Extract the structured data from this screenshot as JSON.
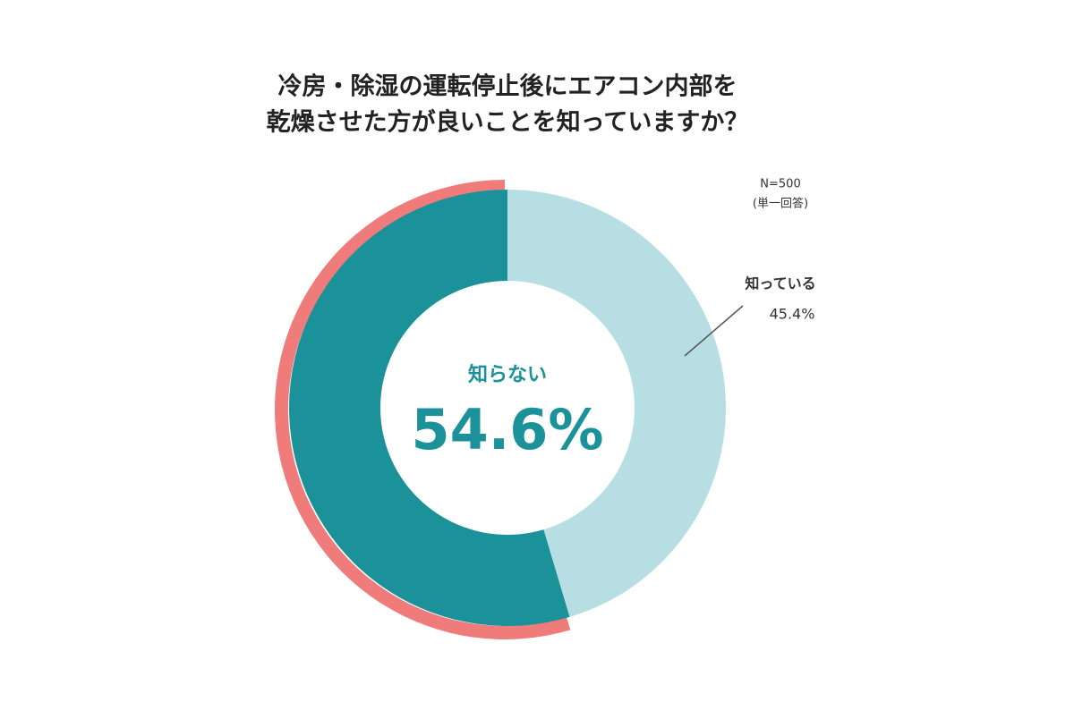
{
  "chart_data": {
    "type": "donut",
    "title": [
      "冷房・除湿の運転停止後にエアコン内部を",
      "乾燥させた方が良いことを知っていますか？"
    ],
    "note": [
      "N=500",
      "(単一回答)"
    ],
    "categories": [
      "知らない",
      "知っている"
    ],
    "values": [
      54.6,
      45.4
    ],
    "value_labels": [
      "54.6%",
      "45.4%"
    ],
    "colors": [
      "#1b9199",
      "#b7dee3"
    ],
    "highlight_color": "#f07b7b"
  }
}
